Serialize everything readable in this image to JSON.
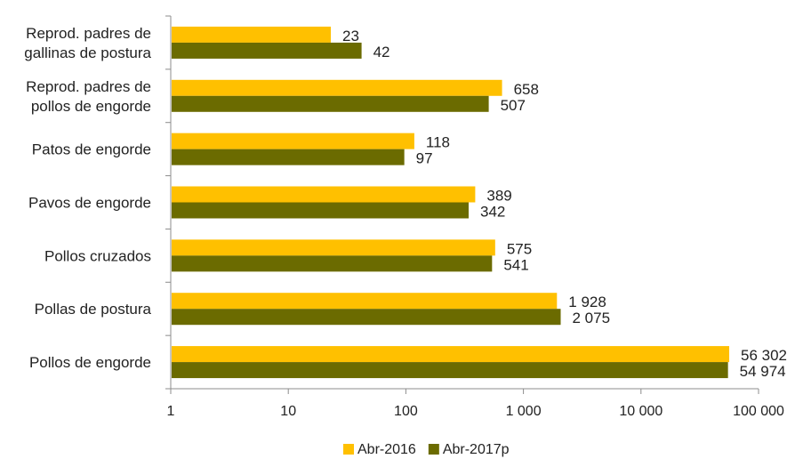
{
  "chart_data": {
    "type": "bar",
    "orientation": "horizontal",
    "x_scale": "log",
    "xlim": [
      1,
      100000
    ],
    "grid": false,
    "legend_position": "bottom",
    "categories": [
      [
        "Reprod. padres  de",
        "gallinas de postura"
      ],
      [
        "Reprod. padres de",
        "pollos de engorde"
      ],
      [
        "Patos de engorde"
      ],
      [
        "Pavos de engorde"
      ],
      [
        "Pollos cruzados"
      ],
      [
        "Pollas de postura"
      ],
      [
        "Pollos de engorde"
      ]
    ],
    "series": [
      {
        "name": "Abr-2016",
        "color": "#FFC000",
        "values": [
          23,
          658,
          118,
          389,
          575,
          1928,
          56302
        ],
        "labels": [
          "23",
          "658",
          "118",
          "389",
          "575",
          "1 928",
          "56 302"
        ]
      },
      {
        "name": "Abr-2017p",
        "color": "#6B6B00",
        "values": [
          42,
          507,
          97,
          342,
          541,
          2075,
          54974
        ],
        "labels": [
          "42",
          "507",
          "97",
          "342",
          "541",
          "2 075",
          "54 974"
        ]
      }
    ],
    "x_ticks": [
      1,
      10,
      100,
      1000,
      10000,
      100000
    ],
    "x_tick_labels": [
      "1",
      "10",
      "100",
      "1 000",
      "10 000",
      "100 000"
    ]
  }
}
